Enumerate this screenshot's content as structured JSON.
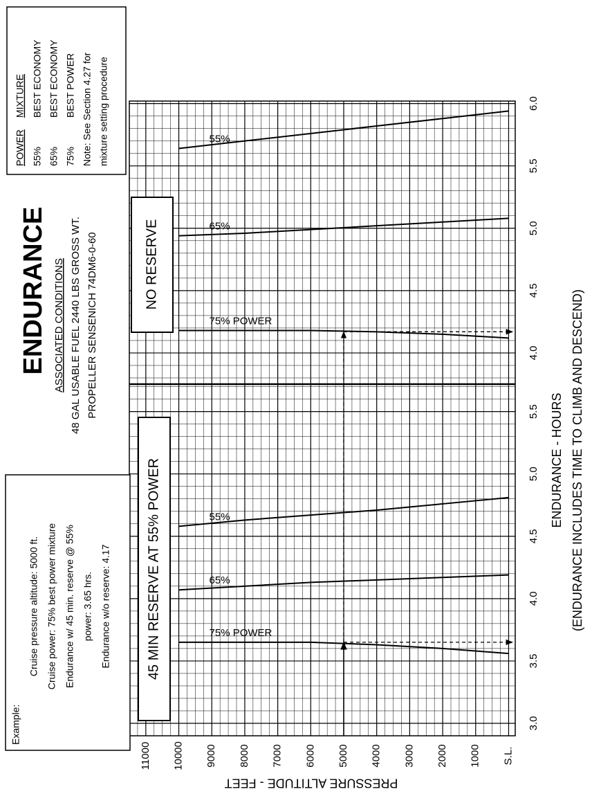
{
  "chart_data": {
    "type": "line",
    "title": "ENDURANCE",
    "subtitle": "ASSOCIATED CONDITIONS",
    "conditions": [
      "48 GAL USABLE FUEL  2440 LBS GROSS WT.",
      "PROPELLER SENSENICH 74DM6-0-60"
    ],
    "xlabel": "PRESSURE ALTITUDE - FEET",
    "ylabel": [
      "ENDURANCE - HOURS",
      "(ENDURANCE INCLUDES TIME TO CLIMB AND DESCEND)"
    ],
    "x": [
      0,
      2000,
      4000,
      6000,
      8000,
      10000
    ],
    "xlim": [
      -200,
      11500
    ],
    "xticks": [
      {
        "value": 0,
        "label": "S.L."
      },
      1000,
      2000,
      3000,
      4000,
      5000,
      6000,
      7000,
      8000,
      9000,
      10000,
      11000
    ],
    "grid": true,
    "panels": [
      {
        "name": "45 MIN RESERVE AT 55% POWER",
        "ylim": [
          2.9,
          5.72
        ],
        "yticks": [
          {
            "value": 3,
            "label": "3.0"
          },
          3.5,
          {
            "value": 4,
            "label": "4.0"
          },
          4.5,
          {
            "value": 5,
            "label": "5.0"
          },
          5.5
        ],
        "series": [
          {
            "name": "75% POWER",
            "color": "#000000",
            "values": [
              3.56,
              3.6,
              3.63,
              3.65,
              3.65,
              3.65
            ]
          },
          {
            "name": "65%",
            "color": "#000000",
            "values": [
              4.19,
              4.17,
              4.15,
              4.13,
              4.1,
              4.07
            ]
          },
          {
            "name": "55%",
            "color": "#000000",
            "values": [
              4.81,
              4.76,
              4.71,
              4.67,
              4.63,
              4.58
            ]
          }
        ]
      },
      {
        "name": "NO RESERVE",
        "ylim": [
          3.75,
          6.02
        ],
        "yticks": [
          {
            "value": 4,
            "label": "4.0"
          },
          4.5,
          {
            "value": 5,
            "label": "5.0"
          },
          5.5,
          {
            "value": 6,
            "label": "6.0"
          }
        ],
        "series": [
          {
            "name": "75% POWER",
            "color": "#000000",
            "values": [
              4.12,
              4.15,
              4.17,
              4.18,
              4.18,
              4.18
            ]
          },
          {
            "name": "65%",
            "color": "#000000",
            "values": [
              5.08,
              5.05,
              5.02,
              4.99,
              4.96,
              4.94
            ]
          },
          {
            "name": "55%",
            "color": "#000000",
            "values": [
              5.94,
              5.88,
              5.82,
              5.76,
              5.7,
              5.64
            ]
          }
        ]
      }
    ],
    "example": {
      "title": "Example:",
      "lines": [
        "Cruise pressure altitude: 5000 ft.",
        "Cruise power: 75% best power mixture",
        "Endurance w/ 45 min. reserve @ 55%",
        "power: 3.65 hrs.",
        "Endurance w/o reserve: 4.17"
      ],
      "altitude": 5000,
      "endurance": [
        3.65,
        4.17
      ]
    },
    "legend_table": {
      "header": [
        "POWER",
        "MIXTURE"
      ],
      "rows": [
        [
          "55%",
          "BEST ECONOMY"
        ],
        [
          "65%",
          "BEST ECONOMY"
        ],
        [
          "75%",
          "BEST POWER"
        ]
      ],
      "note": [
        "Note: See Section 4.27 for",
        "mixture setting procedure"
      ]
    }
  }
}
